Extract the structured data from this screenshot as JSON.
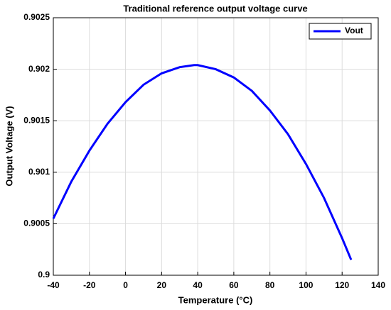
{
  "chart_data": {
    "type": "line",
    "title": "Traditional reference output voltage curve",
    "xlabel": "Temperature (°C)",
    "ylabel": "Output Voltage (V)",
    "x": [
      -40,
      -30,
      -20,
      -10,
      0,
      10,
      20,
      30,
      38,
      40,
      50,
      60,
      70,
      80,
      90,
      100,
      110,
      120,
      125
    ],
    "series": [
      {
        "name": "Vout",
        "color": "#0000ff",
        "values": [
          0.90055,
          0.90091,
          0.90121,
          0.90147,
          0.90168,
          0.90185,
          0.90196,
          0.90202,
          0.90204,
          0.90204,
          0.902,
          0.90192,
          0.90179,
          0.9016,
          0.90137,
          0.90108,
          0.90075,
          0.90036,
          0.90015
        ]
      }
    ],
    "xlim": [
      -40,
      140
    ],
    "xticks": [
      -40,
      -20,
      0,
      20,
      40,
      60,
      80,
      100,
      120,
      140
    ],
    "ylim": [
      0.9,
      0.9025
    ],
    "yticks": [
      0.9,
      0.9005,
      0.901,
      0.9015,
      0.902,
      0.9025
    ],
    "grid": true,
    "legend": "northeast"
  }
}
